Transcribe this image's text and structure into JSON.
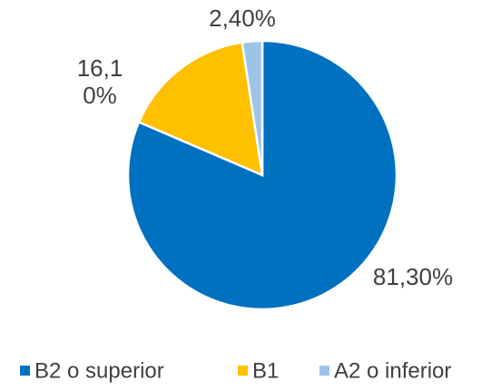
{
  "chart_data": {
    "type": "pie",
    "categories": [
      "B2 o superior",
      "B1",
      "A2 o inferior"
    ],
    "values": [
      81.3,
      16.1,
      2.4
    ],
    "value_labels": [
      "81,30%",
      "16,10%",
      "2,40%"
    ],
    "colors": [
      "#0070c0",
      "#ffc000",
      "#9dc3e6"
    ],
    "legend": "bottom"
  }
}
